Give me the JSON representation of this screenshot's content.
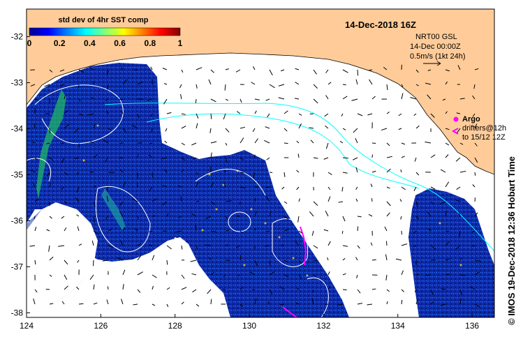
{
  "colorbar": {
    "title": "std dev of 4hr SST comp",
    "ticks": [
      "0",
      "0.2",
      "0.4",
      "0.6",
      "0.8",
      "1"
    ],
    "colormap": [
      "#00008f",
      "#0000ff",
      "#0080ff",
      "#00ffff",
      "#80ff80",
      "#ffff00",
      "#ff8000",
      "#ff0000",
      "#800000"
    ]
  },
  "title": "14-Dec-2018 16Z",
  "currents_info": {
    "source": "NRT00 GSL",
    "time": "14-Dec 00:00Z",
    "scale": "0.5m/s (1kt 24h)"
  },
  "argo_legend": {
    "argo_label": "Argo",
    "drifters_line1": "drifters@12h",
    "drifters_line2": "to 15/12 12Z",
    "argo_color": "#ff00ff"
  },
  "credit": "© IMOS 19-Dec-2018 12:36 Hobart Time",
  "axes": {
    "x_ticks": [
      "124",
      "126",
      "128",
      "130",
      "132",
      "134",
      "136"
    ],
    "y_ticks": [
      "-32",
      "-33",
      "-34",
      "-35",
      "-36",
      "-37",
      "-38"
    ],
    "x_range": [
      124,
      136.6
    ],
    "y_range": [
      -38.1,
      -31.4
    ]
  },
  "colors": {
    "land": "#ffcc99",
    "ocean_data": "#0a1e96",
    "contour": "#ffffff",
    "cyan_line": "#00ffff"
  }
}
